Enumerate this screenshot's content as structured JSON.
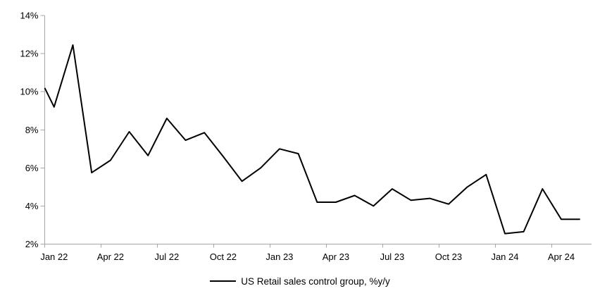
{
  "page": {
    "background_color": "#ffffff"
  },
  "chart_data": {
    "type": "line",
    "title": "",
    "legend_position": "bottom",
    "grid": false,
    "ylim": [
      2,
      14
    ],
    "axis_color": "#a6a6a6",
    "line_color": "#000000",
    "line_width": 2,
    "categories": [
      "Jan 22",
      "Feb 22",
      "Mar 22",
      "Apr 22",
      "May 22",
      "Jun 22",
      "Jul 22",
      "Aug 22",
      "Sep 22",
      "Oct 22",
      "Nov 22",
      "Dec 22",
      "Jan 23",
      "Feb 23",
      "Mar 23",
      "Apr 23",
      "May 23",
      "Jun 23",
      "Jul 23",
      "Aug 23",
      "Sep 23",
      "Oct 23",
      "Nov 23",
      "Dec 23",
      "Jan 24",
      "Feb 24",
      "Mar 24",
      "Apr 24",
      "May 24"
    ],
    "series": [
      {
        "name": "US Retail sales control group, %y/y",
        "color": "#000000",
        "values": [
          9.2,
          12.45,
          5.75,
          6.4,
          7.9,
          6.65,
          8.6,
          7.45,
          7.85,
          6.6,
          5.3,
          6.0,
          7.0,
          6.75,
          4.2,
          4.2,
          4.55,
          4.0,
          4.9,
          4.3,
          4.4,
          4.1,
          5.0,
          5.65,
          2.55,
          2.65,
          4.9,
          3.3,
          3.3
        ]
      }
    ],
    "left_edge_clip_value": 10.2,
    "y_ticks": [
      {
        "label": "2%",
        "value": 2
      },
      {
        "label": "4%",
        "value": 4
      },
      {
        "label": "6%",
        "value": 6
      },
      {
        "label": "8%",
        "value": 8
      },
      {
        "label": "10%",
        "value": 10
      },
      {
        "label": "12%",
        "value": 12
      },
      {
        "label": "14%",
        "value": 14
      }
    ],
    "x_ticks": [
      {
        "label": "Jan 22",
        "index": 0
      },
      {
        "label": "Apr 22",
        "index": 3
      },
      {
        "label": "Jul 22",
        "index": 6
      },
      {
        "label": "Oct 22",
        "index": 9
      },
      {
        "label": "Jan 23",
        "index": 12
      },
      {
        "label": "Apr 23",
        "index": 15
      },
      {
        "label": "Jul 23",
        "index": 18
      },
      {
        "label": "Oct 23",
        "index": 21
      },
      {
        "label": "Jan 24",
        "index": 24
      },
      {
        "label": "Apr 24",
        "index": 27
      }
    ]
  }
}
